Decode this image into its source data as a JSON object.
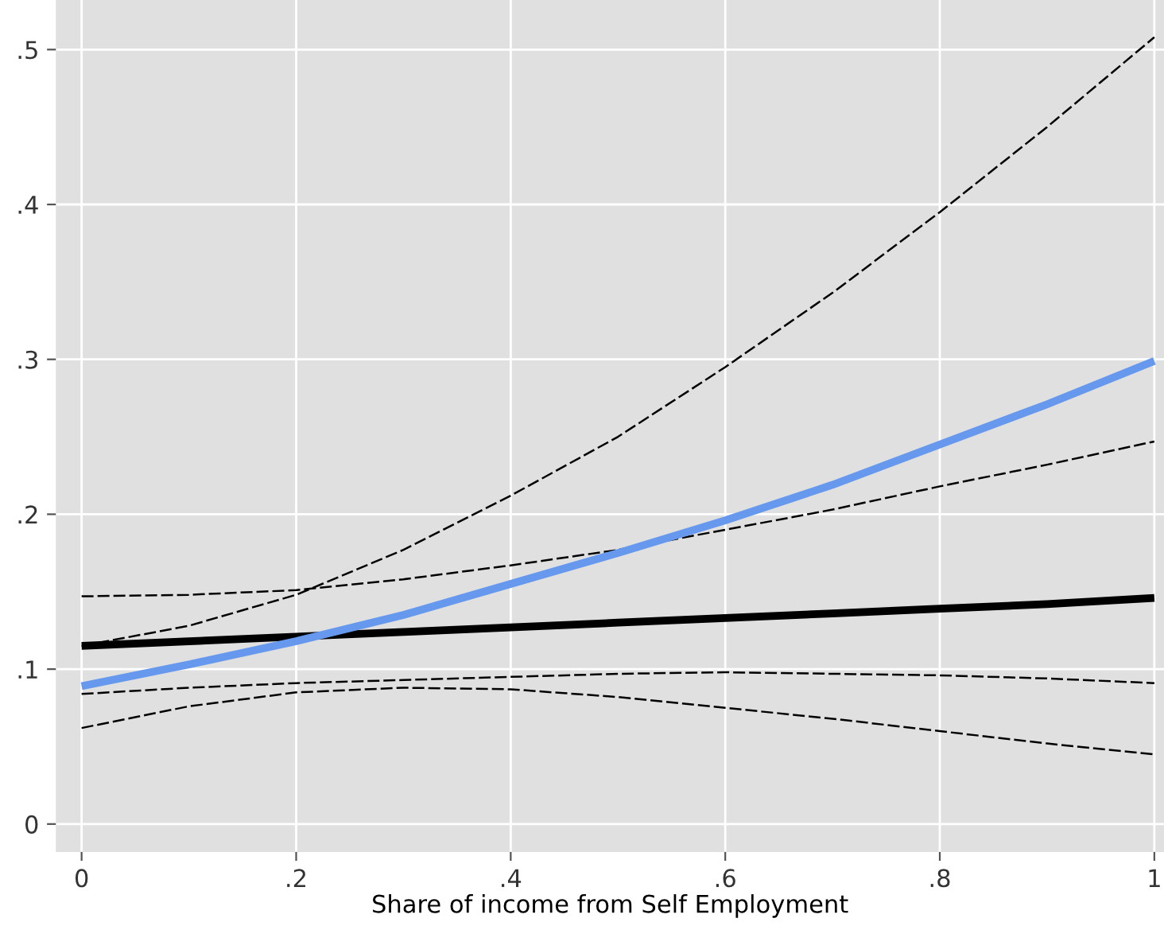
{
  "chart_data": {
    "type": "line",
    "xlabel": "Share of income from Self Employment",
    "xlim": [
      -0.024,
      1.009
    ],
    "ylim": [
      -0.018,
      0.532
    ],
    "xticks": [
      {
        "value": 0,
        "label": "0"
      },
      {
        "value": 0.2,
        "label": ".2"
      },
      {
        "value": 0.4,
        "label": ".4"
      },
      {
        "value": 0.6,
        "label": ".6"
      },
      {
        "value": 0.8,
        "label": ".8"
      },
      {
        "value": 1,
        "label": "1"
      }
    ],
    "yticks": [
      {
        "value": 0,
        "label": "0"
      },
      {
        "value": 0.1,
        "label": ".1"
      },
      {
        "value": 0.2,
        "label": ".2"
      },
      {
        "value": 0.3,
        "label": ".3"
      },
      {
        "value": 0.4,
        "label": ".4"
      },
      {
        "value": 0.5,
        "label": ".5"
      }
    ],
    "grid": true,
    "legend": false,
    "marker": "none",
    "x": [
      0,
      0.1,
      0.2,
      0.3,
      0.4,
      0.5,
      0.6,
      0.7,
      0.8,
      0.9,
      1
    ],
    "series": [
      {
        "color": "#000000",
        "line_style": "dashed",
        "values": [
          0.115,
          0.128,
          0.148,
          0.177,
          0.212,
          0.25,
          0.295,
          0.343,
          0.395,
          0.45,
          0.508
        ]
      },
      {
        "color": "#000000",
        "line_style": "dashed",
        "values": [
          0.062,
          0.076,
          0.085,
          0.088,
          0.087,
          0.082,
          0.075,
          0.068,
          0.06,
          0.052,
          0.045
        ]
      },
      {
        "color": "#000000",
        "line_style": "dashed",
        "values": [
          0.147,
          0.148,
          0.151,
          0.158,
          0.167,
          0.177,
          0.19,
          0.203,
          0.218,
          0.232,
          0.247
        ]
      },
      {
        "color": "#000000",
        "line_style": "dashed",
        "values": [
          0.084,
          0.088,
          0.091,
          0.093,
          0.095,
          0.097,
          0.098,
          0.097,
          0.096,
          0.094,
          0.091
        ]
      },
      {
        "color": "#000000",
        "line_style": "solid",
        "values": [
          0.115,
          0.118,
          0.121,
          0.124,
          0.127,
          0.13,
          0.133,
          0.136,
          0.139,
          0.142,
          0.146
        ]
      },
      {
        "color": "#6699ee",
        "line_style": "solid",
        "values": [
          0.089,
          0.103,
          0.118,
          0.135,
          0.155,
          0.175,
          0.196,
          0.219,
          0.245,
          0.271,
          0.299
        ]
      }
    ]
  }
}
